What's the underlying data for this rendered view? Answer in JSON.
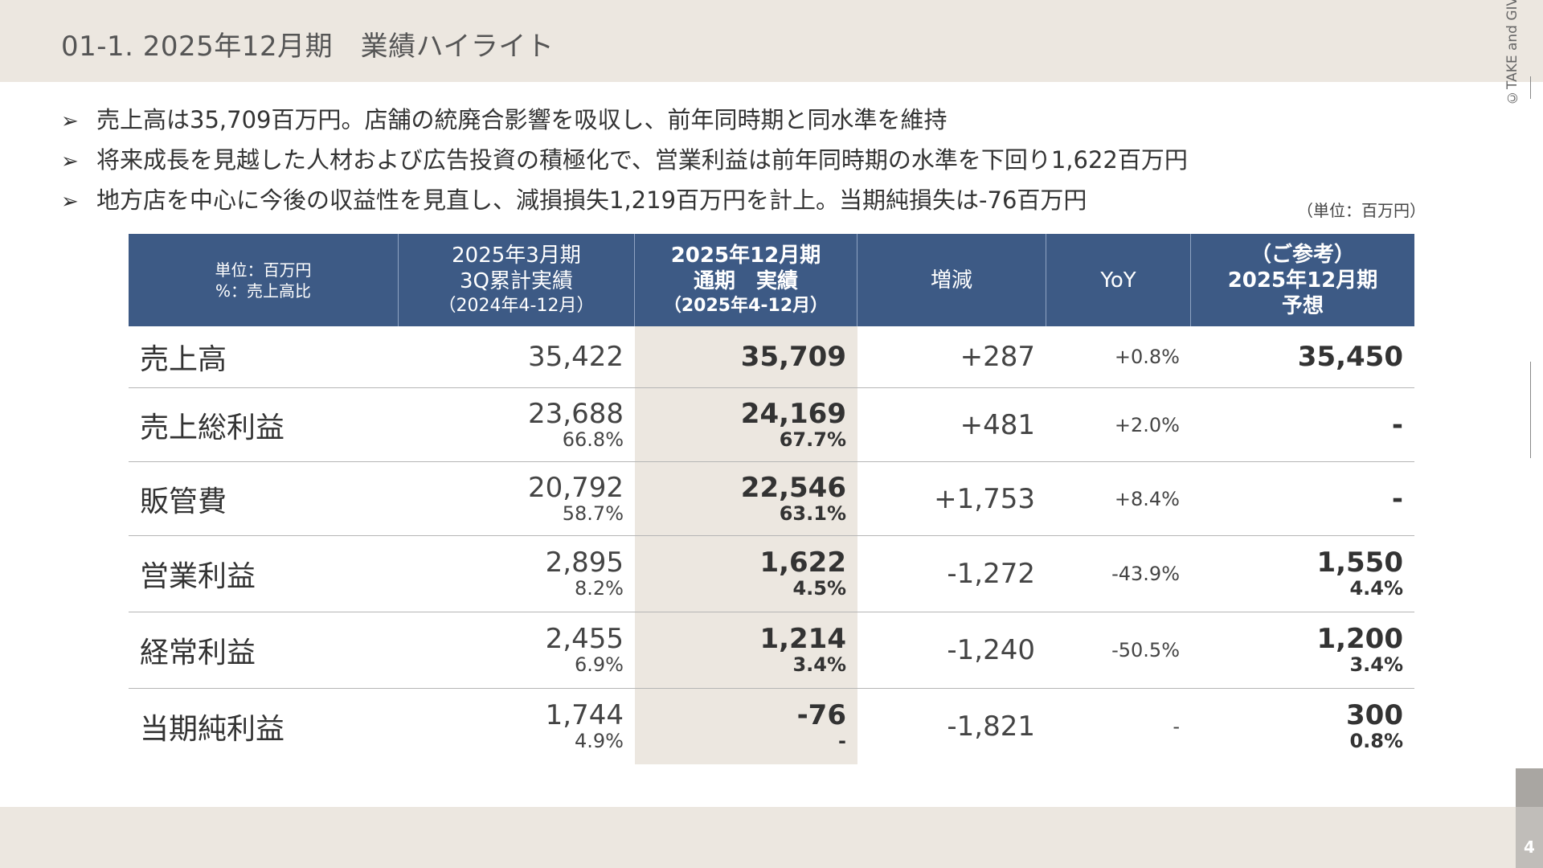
{
  "slide_title": "01-1.  2025年12月期　業績ハイライト",
  "bullets": [
    "売上高は35,709百万円。店舗の統廃合影響を吸収し、前年同時期と同水準を維持",
    "将来成長を見越した人材および広告投資の積極化で、営業利益は前年同時期の水準を下回り1,622百万円",
    "地方店を中心に今後の収益性を見直し、減損損失1,219百万円を計上。当期純損失は-76百万円"
  ],
  "unit_note": "（単位：百万円）",
  "copyright": "©TAKE and GIVE NEEDS Co.,Ltd.",
  "page_number": "4",
  "table": {
    "header": {
      "unit_line1": "単位：百万円",
      "unit_line2": "%：売上高比",
      "col_prev_line1": "2025年3月期",
      "col_prev_line2": "3Q累計実績",
      "col_prev_line3": "（2024年4-12月）",
      "col_curr_line1": "2025年12月期",
      "col_curr_line2": "通期　実績",
      "col_curr_line3": "（2025年4-12月）",
      "col_diff": "増減",
      "col_yoy": "YoY",
      "col_ref_line1": "（ご参考）",
      "col_ref_line2": "2025年12月期",
      "col_ref_line3": "予想"
    },
    "rows": [
      {
        "label": "売上高",
        "prev": "35,422",
        "prev_pct": "",
        "curr": "35,709",
        "curr_pct": "",
        "diff": "+287",
        "yoy": "+0.8%",
        "ref": "35,450",
        "ref_pct": ""
      },
      {
        "label": "売上総利益",
        "prev": "23,688",
        "prev_pct": "66.8%",
        "curr": "24,169",
        "curr_pct": "67.7%",
        "diff": "+481",
        "yoy": "+2.0%",
        "ref": "-",
        "ref_pct": ""
      },
      {
        "label": "販管費",
        "prev": "20,792",
        "prev_pct": "58.7%",
        "curr": "22,546",
        "curr_pct": "63.1%",
        "diff": "+1,753",
        "yoy": "+8.4%",
        "ref": "-",
        "ref_pct": ""
      },
      {
        "label": "営業利益",
        "prev": "2,895",
        "prev_pct": "8.2%",
        "curr": "1,622",
        "curr_pct": "4.5%",
        "diff": "-1,272",
        "yoy": "-43.9%",
        "ref": "1,550",
        "ref_pct": "4.4%"
      },
      {
        "label": "経常利益",
        "prev": "2,455",
        "prev_pct": "6.9%",
        "curr": "1,214",
        "curr_pct": "3.4%",
        "diff": "-1,240",
        "yoy": "-50.5%",
        "ref": "1,200",
        "ref_pct": "3.4%"
      },
      {
        "label": "当期純利益",
        "prev": "1,744",
        "prev_pct": "4.9%",
        "curr": "-76",
        "curr_pct": "-",
        "diff": "-1,821",
        "yoy": "-",
        "ref": "300",
        "ref_pct": "0.8%"
      }
    ]
  },
  "colors": {
    "header_bg": "#3d5a85",
    "band_bg": "#ece7e0",
    "highlight_col": "#ece7e0"
  }
}
